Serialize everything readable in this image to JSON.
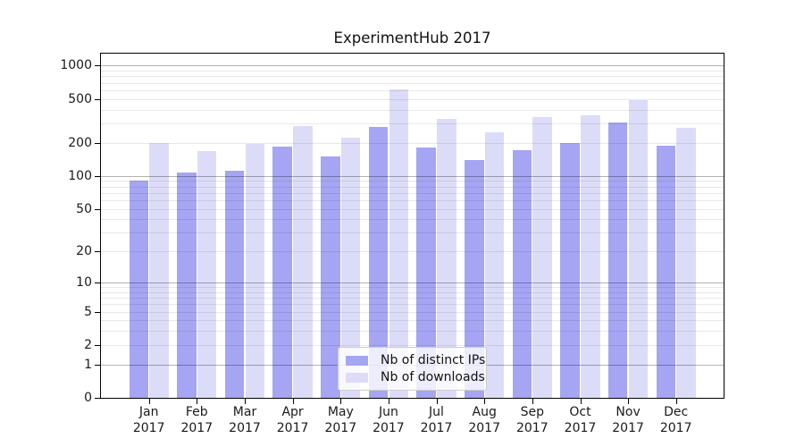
{
  "chart_data": {
    "type": "bar",
    "title": "ExperimentHub 2017",
    "x_months": [
      "Jan",
      "Feb",
      "Mar",
      "Apr",
      "May",
      "Jun",
      "Jul",
      "Aug",
      "Sep",
      "Oct",
      "Nov",
      "Dec"
    ],
    "x_year": "2017",
    "series": [
      {
        "name": "Nb of distinct IPs",
        "color": "#a5a5f3",
        "values": [
          91,
          108,
          112,
          183,
          150,
          280,
          180,
          139,
          171,
          199,
          304,
          189
        ]
      },
      {
        "name": "Nb of downloads",
        "color": "#dcdcf9",
        "values": [
          199,
          169,
          196,
          283,
          223,
          607,
          327,
          247,
          341,
          354,
          486,
          274
        ]
      }
    ],
    "y_scale": "log1p",
    "ylim": [
      0,
      1280
    ],
    "y_ticks": [
      0,
      1,
      2,
      5,
      10,
      20,
      50,
      100,
      200,
      500,
      1000
    ],
    "y_grid_major": [
      1,
      10,
      100,
      1000
    ],
    "y_grid_minor": [
      2,
      3,
      4,
      5,
      6,
      7,
      8,
      9,
      20,
      30,
      40,
      50,
      60,
      70,
      80,
      90,
      200,
      300,
      400,
      500,
      600,
      700,
      800,
      900
    ],
    "grid": "on",
    "legend_position": "lower center"
  },
  "colors": {
    "background": "#ffffff",
    "axis": "#000000",
    "text": "#1a1a1a",
    "grid_major": "rgba(0,0,0,0.30)",
    "grid_minor": "rgba(0,0,0,0.09)",
    "legend_bg": "rgba(255,255,255,0.8)",
    "legend_border": "#cccccc"
  }
}
